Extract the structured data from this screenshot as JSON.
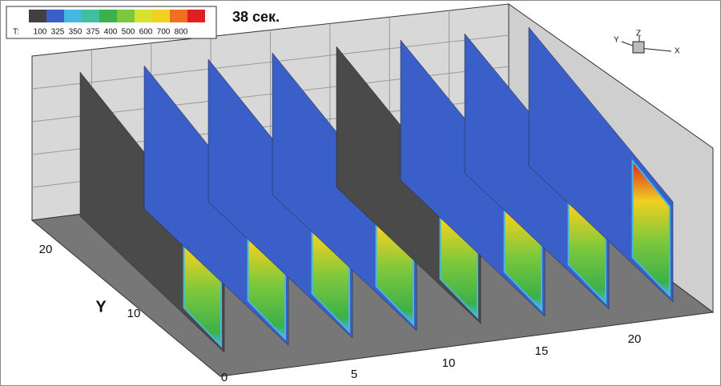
{
  "header": {
    "title": "38 сек."
  },
  "legend": {
    "label": "T:",
    "colors": [
      "#404040",
      "#3a5fc8",
      "#44b8e0",
      "#3fc0a0",
      "#3cb04a",
      "#7cc83c",
      "#d8e030",
      "#f0d020",
      "#f07020",
      "#e02020"
    ],
    "labels": [
      "100",
      "325",
      "350",
      "375",
      "400",
      "500",
      "600",
      "700",
      "800"
    ]
  },
  "y_axis": {
    "label": "Y",
    "ticks": [
      "0",
      "10",
      "20"
    ]
  },
  "x_axis": {
    "ticks": [
      "5",
      "10",
      "15",
      "20"
    ]
  },
  "triad": {
    "z": "Z",
    "y": "Y",
    "x": "X"
  }
}
